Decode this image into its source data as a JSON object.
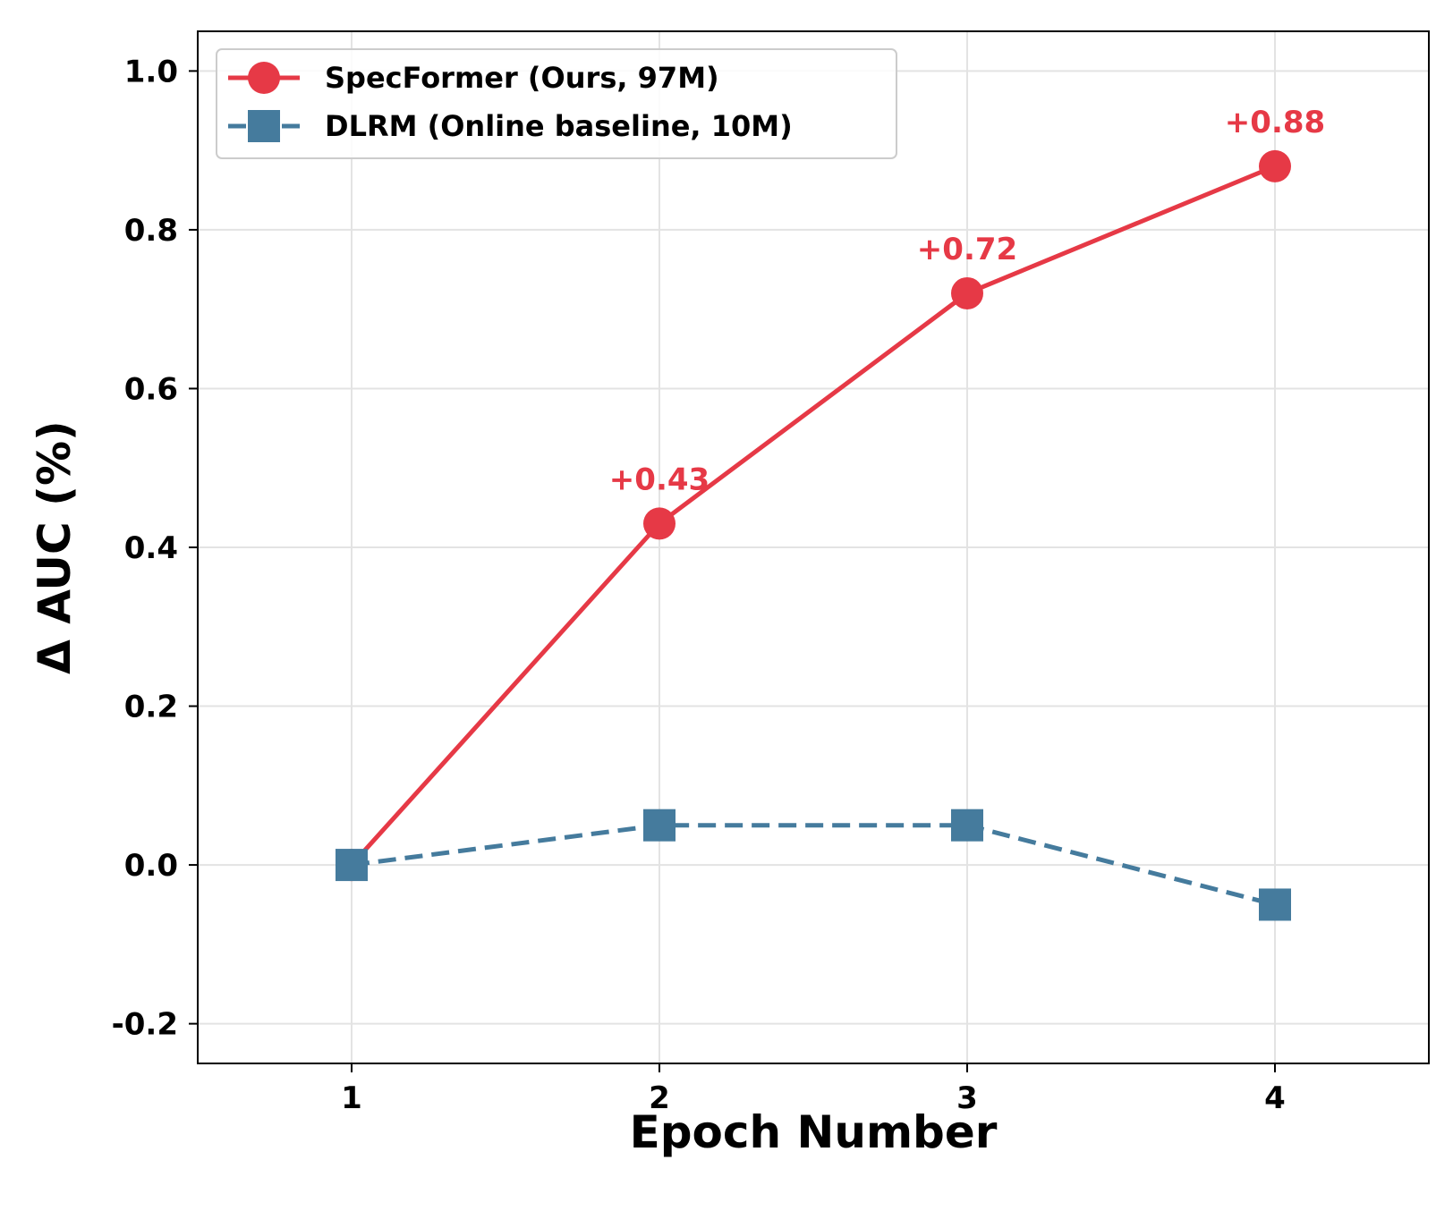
{
  "chart_data": {
    "type": "line",
    "xlabel": "Epoch Number",
    "ylabel": "Δ AUC (%)",
    "x": [
      1,
      2,
      3,
      4
    ],
    "xticks": [
      "1",
      "2",
      "3",
      "4"
    ],
    "xlim": [
      0.5,
      4.5
    ],
    "ylim": [
      -0.25,
      1.05
    ],
    "yticks": [
      -0.2,
      0.0,
      0.2,
      0.4,
      0.6,
      0.8,
      1.0
    ],
    "ytick_labels": [
      "-0.2",
      "0.0",
      "0.2",
      "0.4",
      "0.6",
      "0.8",
      "1.0"
    ],
    "grid": true,
    "legend_position": "top-left",
    "series": [
      {
        "name": "SpecFormer (Ours, 97M)",
        "values": [
          0.0,
          0.43,
          0.72,
          0.88
        ],
        "color": "#e63946",
        "line_style": "solid",
        "marker": "circle",
        "annotations": [
          {
            "x": 2,
            "y": 0.43,
            "text": "+0.43"
          },
          {
            "x": 3,
            "y": 0.72,
            "text": "+0.72"
          },
          {
            "x": 4,
            "y": 0.88,
            "text": "+0.88"
          }
        ]
      },
      {
        "name": "DLRM (Online baseline, 10M)",
        "values": [
          0.0,
          0.05,
          0.05,
          -0.05
        ],
        "color": "#457b9d",
        "line_style": "dashed",
        "marker": "square"
      }
    ]
  }
}
